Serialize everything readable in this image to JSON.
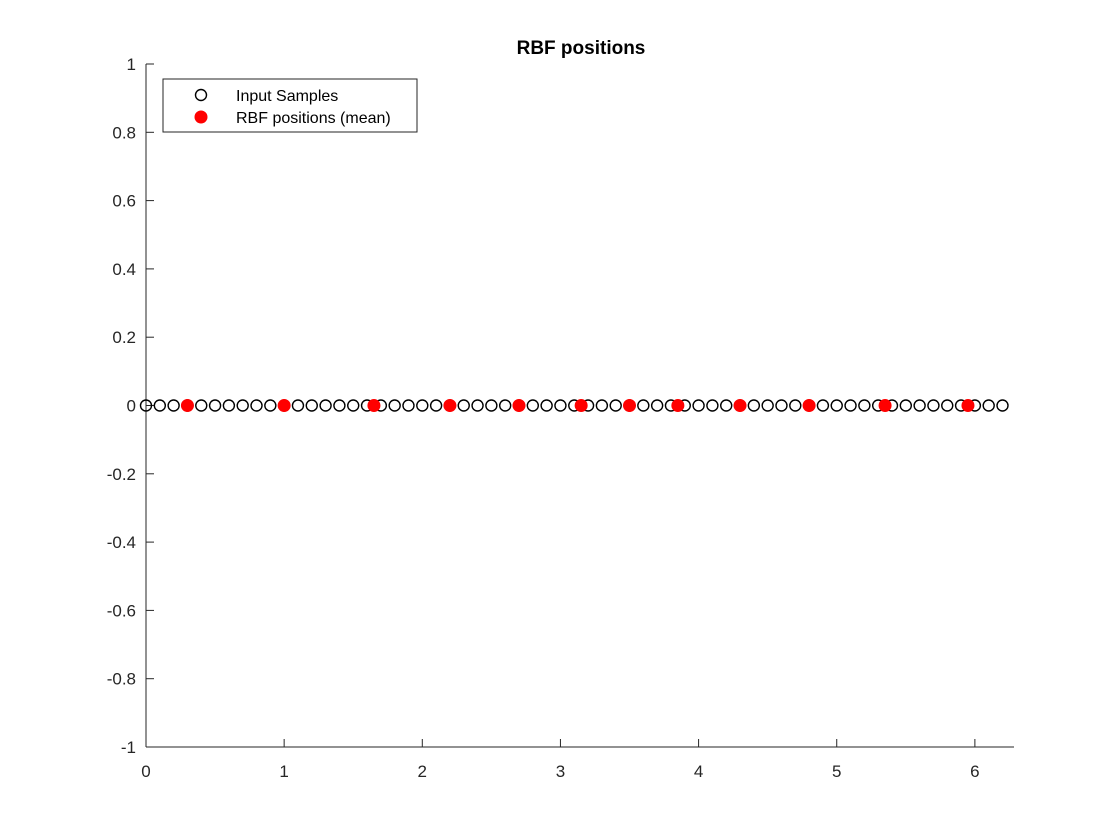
{
  "chart_data": {
    "type": "scatter",
    "title": "RBF positions",
    "xlabel": "",
    "ylabel": "",
    "xlim": [
      0,
      6.283185307179586
    ],
    "ylim": [
      -1,
      1
    ],
    "xticks": [
      0,
      1,
      2,
      3,
      4,
      5,
      6
    ],
    "yticks": [
      -1,
      -0.8,
      -0.6,
      -0.4,
      -0.2,
      0,
      0.2,
      0.4,
      0.6,
      0.8,
      1
    ],
    "xtick_labels": [
      "0",
      "1",
      "2",
      "3",
      "4",
      "5",
      "6"
    ],
    "ytick_labels": [
      "-1",
      "-0.8",
      "-0.6",
      "-0.4",
      "-0.2",
      "0",
      "0.2",
      "0.4",
      "0.6",
      "0.8",
      "1"
    ],
    "grid": false,
    "legend_position": "top-left",
    "series": [
      {
        "name": "Input Samples",
        "marker": "open-circle",
        "color": "#000000",
        "x": [
          0,
          0.1,
          0.2,
          0.3,
          0.4,
          0.5,
          0.6,
          0.7,
          0.8,
          0.9,
          1.0,
          1.1,
          1.2,
          1.3,
          1.4,
          1.5,
          1.6,
          1.7,
          1.8,
          1.9,
          2.0,
          2.1,
          2.2,
          2.3,
          2.4,
          2.5,
          2.6,
          2.7,
          2.8,
          2.9,
          3.0,
          3.1,
          3.2,
          3.3,
          3.4,
          3.5,
          3.6,
          3.7,
          3.8,
          3.9,
          4.0,
          4.1,
          4.2,
          4.3,
          4.4,
          4.5,
          4.6,
          4.7,
          4.8,
          4.9,
          5.0,
          5.1,
          5.2,
          5.3,
          5.4,
          5.5,
          5.6,
          5.7,
          5.8,
          5.9,
          6.0,
          6.1,
          6.2
        ],
        "y": [
          0,
          0,
          0,
          0,
          0,
          0,
          0,
          0,
          0,
          0,
          0,
          0,
          0,
          0,
          0,
          0,
          0,
          0,
          0,
          0,
          0,
          0,
          0,
          0,
          0,
          0,
          0,
          0,
          0,
          0,
          0,
          0,
          0,
          0,
          0,
          0,
          0,
          0,
          0,
          0,
          0,
          0,
          0,
          0,
          0,
          0,
          0,
          0,
          0,
          0,
          0,
          0,
          0,
          0,
          0,
          0,
          0,
          0,
          0,
          0,
          0,
          0,
          0
        ]
      },
      {
        "name": "RBF positions (mean)",
        "marker": "filled-circle",
        "color": "#ff0000",
        "x": [
          0.3,
          1.0,
          1.65,
          2.2,
          2.7,
          3.15,
          3.5,
          3.85,
          4.3,
          4.8,
          5.35,
          5.95
        ],
        "y": [
          0,
          0,
          0,
          0,
          0,
          0,
          0,
          0,
          0,
          0,
          0,
          0
        ]
      }
    ]
  }
}
